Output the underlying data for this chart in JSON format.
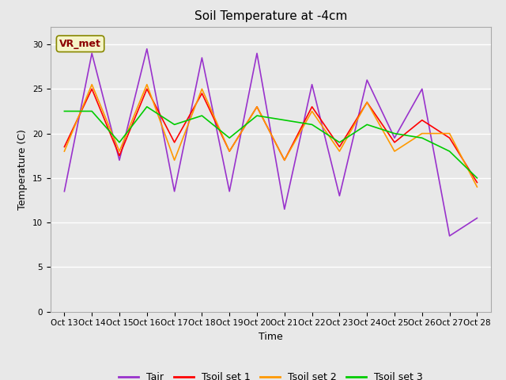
{
  "title": "Soil Temperature at -4cm",
  "xlabel": "Time",
  "ylabel": "Temperature (C)",
  "ylim": [
    0,
    32
  ],
  "background_color": "#e8e8e8",
  "plot_bg_color": "#e8e8e8",
  "annotation_text": "VR_met",
  "annotation_color": "#8B0000",
  "annotation_bg": "#f5f5c8",
  "x_tick_labels": [
    "Oct 13",
    "Oct 14",
    "Oct 15",
    "Oct 16",
    "Oct 17",
    "Oct 18",
    "Oct 19",
    "Oct 20",
    "Oct 21",
    "Oct 22",
    "Oct 23",
    "Oct 24",
    "Oct 25",
    "Oct 26",
    "Oct 27",
    "Oct 28"
  ],
  "series": {
    "Tair": {
      "color": "#9932CC",
      "values": [
        13.5,
        29.0,
        17.0,
        29.5,
        13.5,
        28.5,
        13.5,
        29.0,
        11.5,
        25.5,
        13.0,
        26.0,
        19.5,
        25.0,
        8.5,
        10.5
      ]
    },
    "Tsoil set 1": {
      "color": "#ff0000",
      "values": [
        18.5,
        25.0,
        17.5,
        25.0,
        19.0,
        24.5,
        18.0,
        23.0,
        17.0,
        23.0,
        18.5,
        23.5,
        19.0,
        21.5,
        19.5,
        14.5
      ]
    },
    "Tsoil set 2": {
      "color": "#ff9900",
      "values": [
        18.0,
        25.5,
        18.0,
        25.5,
        17.0,
        25.0,
        18.0,
        23.0,
        17.0,
        22.5,
        18.0,
        23.5,
        18.0,
        20.0,
        20.0,
        14.0
      ]
    },
    "Tsoil set 3": {
      "color": "#00cc00",
      "values": [
        22.5,
        22.5,
        19.0,
        23.0,
        21.0,
        22.0,
        19.5,
        22.0,
        21.5,
        21.0,
        19.0,
        21.0,
        20.0,
        19.5,
        18.0,
        15.0
      ]
    }
  },
  "legend_entries": [
    "Tair",
    "Tsoil set 1",
    "Tsoil set 2",
    "Tsoil set 3"
  ],
  "legend_colors": [
    "#9932CC",
    "#ff0000",
    "#ff9900",
    "#00cc00"
  ],
  "yticks": [
    0,
    5,
    10,
    15,
    20,
    25,
    30
  ],
  "title_fontsize": 11,
  "tick_fontsize": 7.5,
  "label_fontsize": 9,
  "legend_fontsize": 9
}
